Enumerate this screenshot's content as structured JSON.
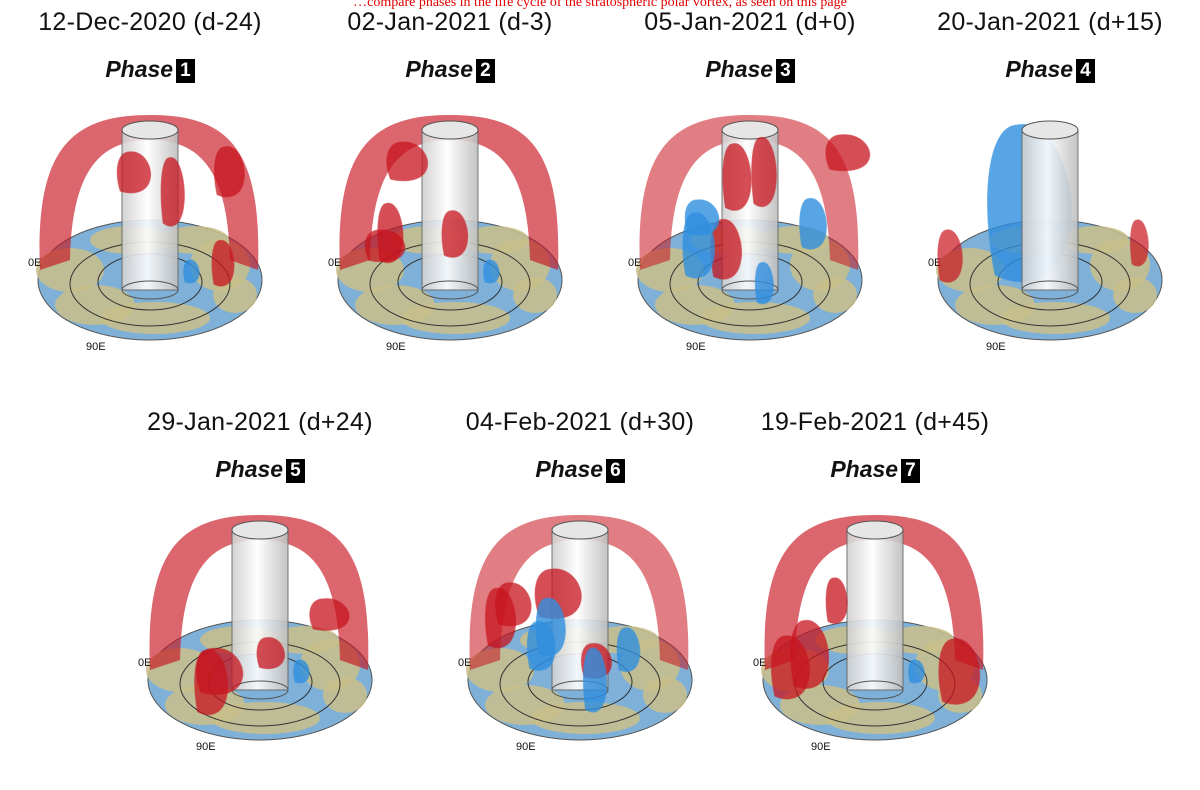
{
  "header_note": "…compare phases in the life cycle of the stratospheric polar vortex, as seen on this page",
  "panels": [
    {
      "date": "12-Dec-2020 (d-24)",
      "phase_label": "Phase",
      "phase_number": "1",
      "dominant": "red"
    },
    {
      "date": "02-Jan-2021 (d-3)",
      "phase_label": "Phase",
      "phase_number": "2",
      "dominant": "red"
    },
    {
      "date": "05-Jan-2021 (d+0)",
      "phase_label": "Phase",
      "phase_number": "3",
      "dominant": "mixed"
    },
    {
      "date": "20-Jan-2021 (d+15)",
      "phase_label": "Phase",
      "phase_number": "4",
      "dominant": "blue"
    },
    {
      "date": "29-Jan-2021 (d+24)",
      "phase_label": "Phase",
      "phase_number": "5",
      "dominant": "red"
    },
    {
      "date": "04-Feb-2021 (d+30)",
      "phase_label": "Phase",
      "phase_number": "6",
      "dominant": "mixed"
    },
    {
      "date": "19-Feb-2021 (d+45)",
      "phase_label": "Phase",
      "phase_number": "7",
      "dominant": "red"
    }
  ],
  "map_labels": {
    "lon_0": "0E",
    "lon_90": "90E"
  },
  "colors": {
    "positive_anomaly": "#c8141e",
    "negative_anomaly": "#2f8fe0",
    "ocean": "#7fb1d8",
    "land": "#c9c08a"
  }
}
